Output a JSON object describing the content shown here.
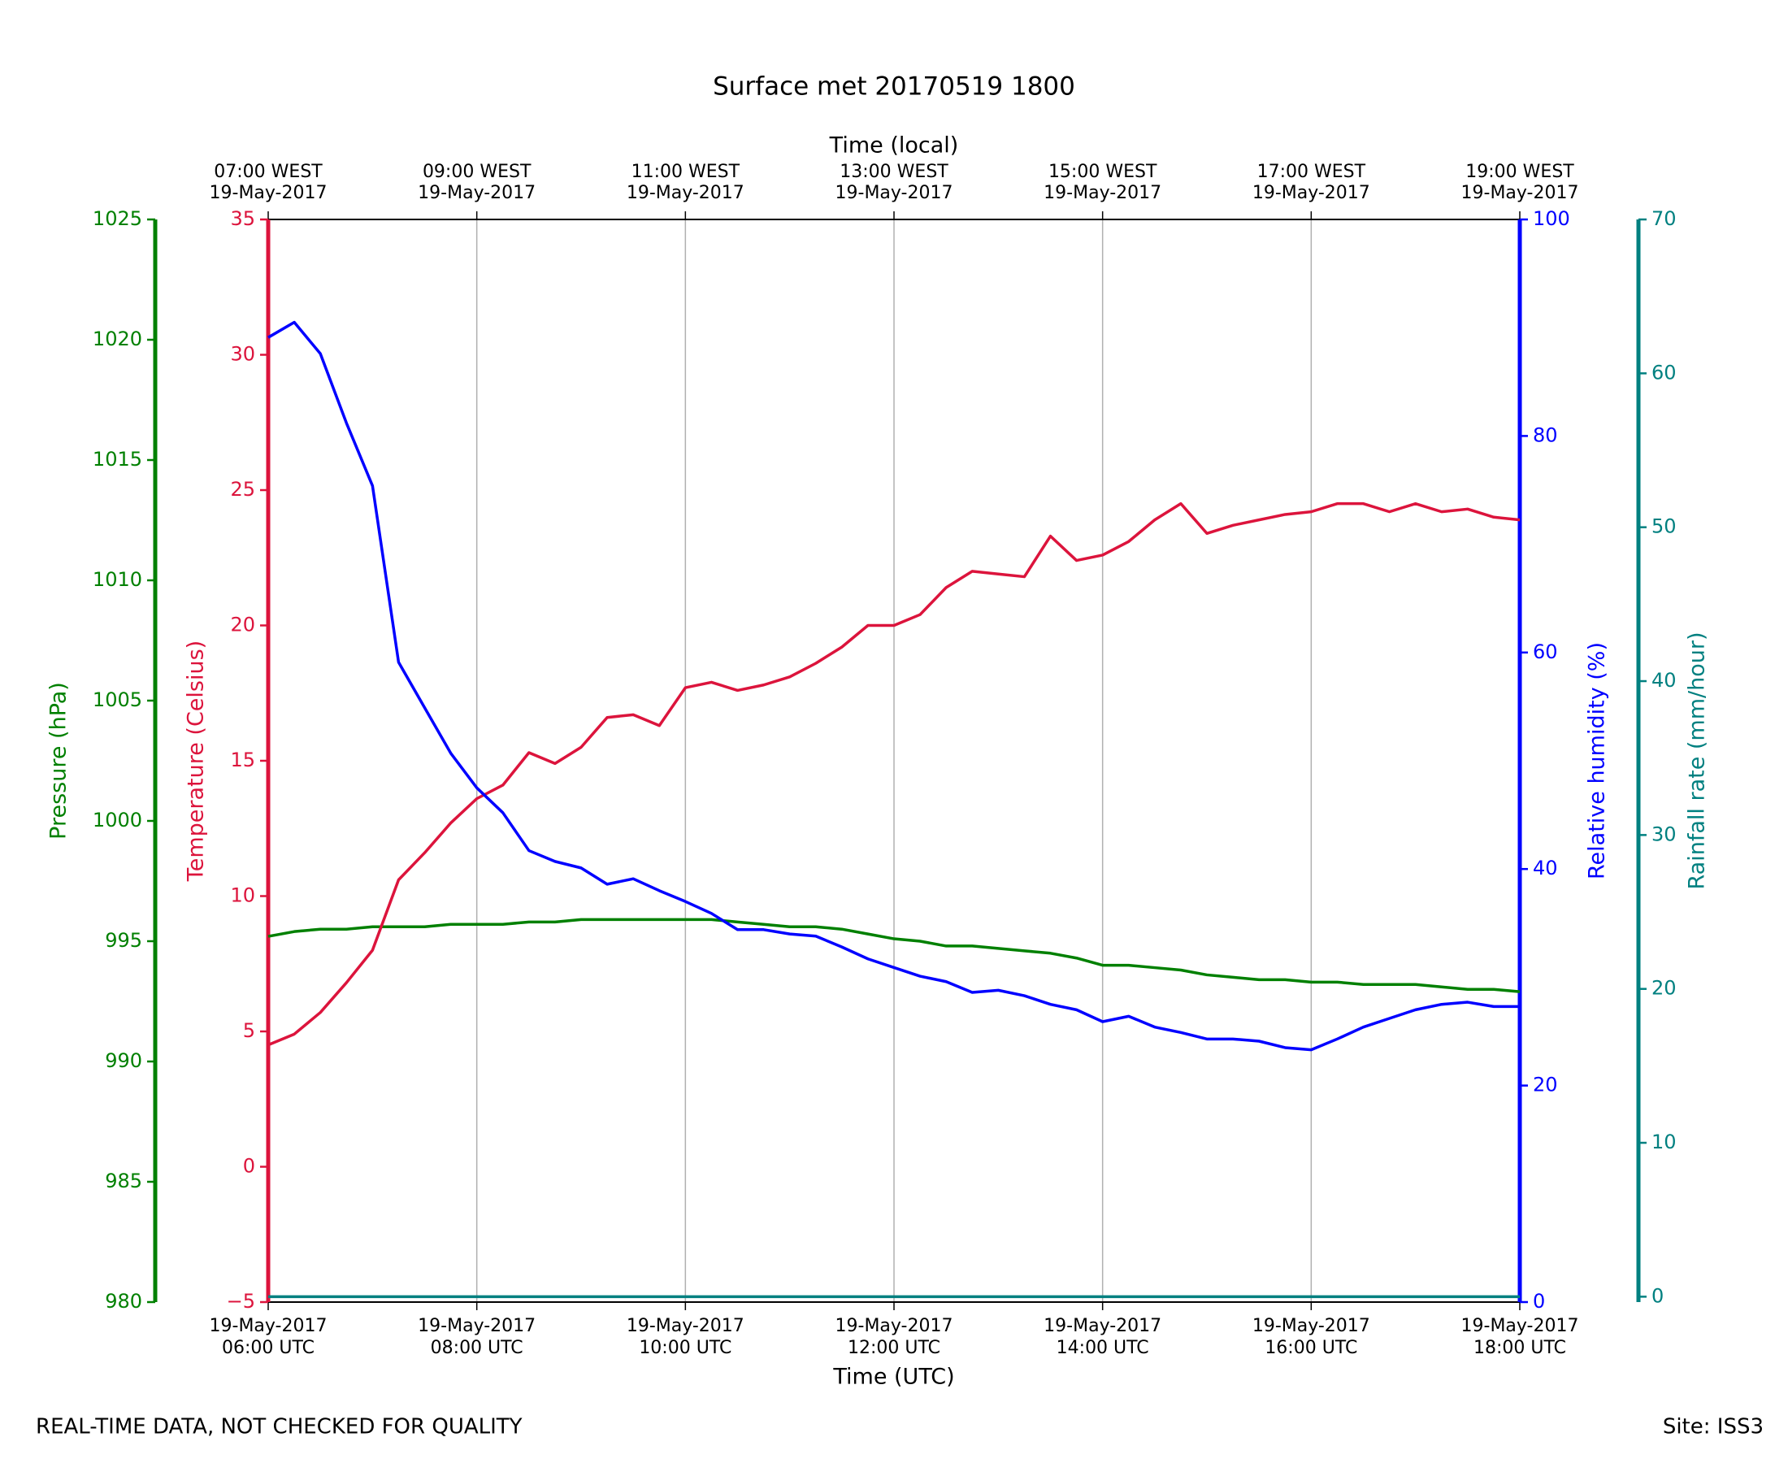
{
  "chart_data": {
    "type": "line",
    "title": "Surface met 20170519 1800",
    "xlabel": "Time (UTC)",
    "x2label": "Time (local)",
    "ylabel": "Temperature (Celsius)",
    "y2label": "Relative humidity (%)",
    "y3label": "Pressure (hPa)",
    "y4label": "Rainfall rate (mm/hour)",
    "annotations": [
      "REAL-TIME DATA, NOT CHECKED FOR QUALITY",
      "Site: ISS3"
    ],
    "grid": true,
    "xlim": [
      "2017-05-19 06:00",
      "2017-05-19 18:00"
    ],
    "xticks": [
      {
        "value": "2017-05-19 06:00",
        "label": [
          "19-May-2017",
          "06:00 UTC"
        ]
      },
      {
        "value": "2017-05-19 08:00",
        "label": [
          "19-May-2017",
          "08:00 UTC"
        ]
      },
      {
        "value": "2017-05-19 10:00",
        "label": [
          "19-May-2017",
          "10:00 UTC"
        ]
      },
      {
        "value": "2017-05-19 12:00",
        "label": [
          "19-May-2017",
          "12:00 UTC"
        ]
      },
      {
        "value": "2017-05-19 14:00",
        "label": [
          "19-May-2017",
          "14:00 UTC"
        ]
      },
      {
        "value": "2017-05-19 16:00",
        "label": [
          "19-May-2017",
          "16:00 UTC"
        ]
      },
      {
        "value": "2017-05-19 18:00",
        "label": [
          "19-May-2017",
          "18:00 UTC"
        ]
      }
    ],
    "x2ticks": [
      {
        "value": "2017-05-19 06:00",
        "label": [
          "07:00 WEST",
          "19-May-2017"
        ]
      },
      {
        "value": "2017-05-19 08:00",
        "label": [
          "09:00 WEST",
          "19-May-2017"
        ]
      },
      {
        "value": "2017-05-19 10:00",
        "label": [
          "11:00 WEST",
          "19-May-2017"
        ]
      },
      {
        "value": "2017-05-19 12:00",
        "label": [
          "13:00 WEST",
          "19-May-2017"
        ]
      },
      {
        "value": "2017-05-19 14:00",
        "label": [
          "15:00 WEST",
          "19-May-2017"
        ]
      },
      {
        "value": "2017-05-19 16:00",
        "label": [
          "17:00 WEST",
          "19-May-2017"
        ]
      },
      {
        "value": "2017-05-19 18:00",
        "label": [
          "19:00 WEST",
          "19-May-2017"
        ]
      }
    ],
    "ylim": [
      -5,
      35
    ],
    "yticks": [
      {
        "value": -5,
        "label": "−5"
      },
      0,
      5,
      10,
      15,
      20,
      25,
      30,
      35
    ],
    "ycolor": "#dc143c",
    "y2lim": [
      0,
      100
    ],
    "y2ticks": [
      0,
      20,
      40,
      60,
      80,
      100
    ],
    "y2color": "#0000ff",
    "y3lim": [
      980,
      1025
    ],
    "y3ticks": [
      980,
      985,
      990,
      995,
      1000,
      1005,
      1010,
      1015,
      1020,
      1025
    ],
    "y3color": "#008000",
    "y4lim": [
      -0.35,
      70
    ],
    "y4ticks": [
      0,
      10,
      20,
      30,
      40,
      50,
      60,
      70
    ],
    "y4color": "#008080",
    "x": [
      "2017-05-19 06:00",
      "2017-05-19 06:15",
      "2017-05-19 06:30",
      "2017-05-19 06:45",
      "2017-05-19 07:00",
      "2017-05-19 07:15",
      "2017-05-19 07:30",
      "2017-05-19 07:45",
      "2017-05-19 08:00",
      "2017-05-19 08:15",
      "2017-05-19 08:30",
      "2017-05-19 08:45",
      "2017-05-19 09:00",
      "2017-05-19 09:15",
      "2017-05-19 09:30",
      "2017-05-19 09:45",
      "2017-05-19 10:00",
      "2017-05-19 10:15",
      "2017-05-19 10:30",
      "2017-05-19 10:45",
      "2017-05-19 11:00",
      "2017-05-19 11:15",
      "2017-05-19 11:30",
      "2017-05-19 11:45",
      "2017-05-19 12:00",
      "2017-05-19 12:15",
      "2017-05-19 12:30",
      "2017-05-19 12:45",
      "2017-05-19 13:00",
      "2017-05-19 13:15",
      "2017-05-19 13:30",
      "2017-05-19 13:45",
      "2017-05-19 14:00",
      "2017-05-19 14:15",
      "2017-05-19 14:30",
      "2017-05-19 14:45",
      "2017-05-19 15:00",
      "2017-05-19 15:15",
      "2017-05-19 15:30",
      "2017-05-19 15:45",
      "2017-05-19 16:00",
      "2017-05-19 16:15",
      "2017-05-19 16:30",
      "2017-05-19 16:45",
      "2017-05-19 17:00",
      "2017-05-19 17:15",
      "2017-05-19 17:30",
      "2017-05-19 17:45",
      "2017-05-19 18:00"
    ],
    "series": [
      {
        "axis": "y3",
        "color": "#008000",
        "values": [
          995.2,
          995.4,
          995.5,
          995.5,
          995.6,
          995.6,
          995.6,
          995.7,
          995.7,
          995.7,
          995.8,
          995.8,
          995.9,
          995.9,
          995.9,
          995.9,
          995.9,
          995.9,
          995.8,
          995.7,
          995.6,
          995.6,
          995.5,
          995.3,
          995.1,
          995.0,
          994.8,
          994.8,
          994.7,
          994.6,
          994.5,
          994.3,
          994.0,
          994.0,
          993.9,
          993.8,
          993.6,
          993.5,
          993.4,
          993.4,
          993.3,
          993.3,
          993.2,
          993.2,
          993.2,
          993.1,
          993.0,
          993.0,
          992.9
        ]
      },
      {
        "axis": "y",
        "color": "#dc143c",
        "values": [
          4.5,
          4.9,
          5.7,
          6.8,
          8.0,
          10.6,
          11.6,
          12.7,
          13.6,
          14.1,
          15.3,
          14.9,
          15.5,
          16.6,
          16.7,
          16.3,
          17.7,
          17.9,
          17.6,
          17.8,
          18.1,
          18.6,
          19.2,
          20.0,
          20.0,
          20.4,
          21.4,
          22.0,
          21.9,
          21.8,
          23.3,
          22.4,
          22.6,
          23.1,
          23.9,
          24.5,
          23.4,
          23.7,
          23.9,
          24.1,
          24.2,
          24.5,
          24.5,
          24.2,
          24.5,
          24.2,
          24.3,
          24.0,
          23.9
        ]
      },
      {
        "axis": "y2",
        "color": "#0000ff",
        "values": [
          89.1,
          90.5,
          87.6,
          81.2,
          75.4,
          59.1,
          54.9,
          50.7,
          47.5,
          45.2,
          41.7,
          40.7,
          40.1,
          38.6,
          39.1,
          38.0,
          37.0,
          35.9,
          34.4,
          34.4,
          34.0,
          33.8,
          32.8,
          31.7,
          30.9,
          30.1,
          29.6,
          28.6,
          28.8,
          28.3,
          27.5,
          27.0,
          25.9,
          26.4,
          25.4,
          24.9,
          24.3,
          24.3,
          24.1,
          23.5,
          23.3,
          24.3,
          25.4,
          26.2,
          27.0,
          27.5,
          27.7,
          27.3,
          27.3
        ]
      },
      {
        "axis": "y4",
        "color": "#008080",
        "values": [
          0,
          0,
          0,
          0,
          0,
          0,
          0,
          0,
          0,
          0,
          0,
          0,
          0,
          0,
          0,
          0,
          0,
          0,
          0,
          0,
          0,
          0,
          0,
          0,
          0,
          0,
          0,
          0,
          0,
          0,
          0,
          0,
          0,
          0,
          0,
          0,
          0,
          0,
          0,
          0,
          0,
          0,
          0,
          0,
          0,
          0,
          0,
          0,
          0
        ]
      }
    ]
  }
}
